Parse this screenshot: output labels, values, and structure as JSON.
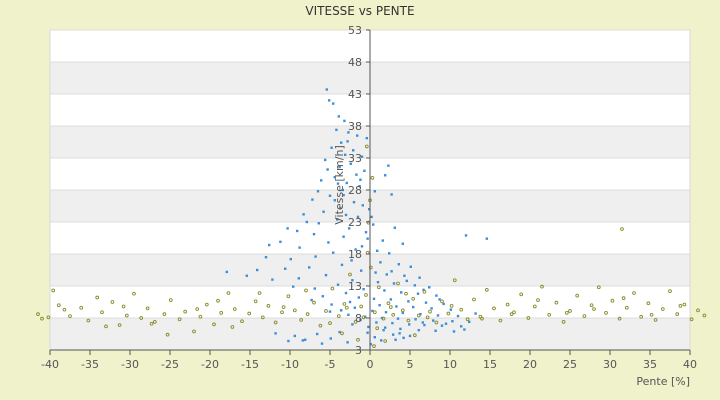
{
  "chart_data": {
    "type": "scatter",
    "title": "VITESSE vs PENTE",
    "xlabel": "Pente [%]",
    "ylabel": "Vitesse [km/h]",
    "xlim": [
      -40,
      40
    ],
    "ylim": [
      3,
      53
    ],
    "x_ticks": [
      -40,
      -35,
      -30,
      -25,
      -20,
      -15,
      -10,
      -5,
      0,
      5,
      10,
      15,
      20,
      25,
      30,
      35,
      40
    ],
    "y_ticks": [
      3,
      8,
      13,
      18,
      23,
      28,
      33,
      38,
      43,
      48,
      53
    ],
    "grid": "horizontal alternating bands",
    "colors": {
      "background": "#f0f2cc",
      "plot_band_light": "#ffffff",
      "plot_band_dark": "#efefef",
      "series_blue": "#3a8fdc",
      "series_olive": "#8a8a2a",
      "axis": "#555555"
    },
    "series": [
      {
        "color": "#3a8fdc",
        "points": [
          [
            -5.4,
            43.7
          ],
          [
            -5.1,
            42.0
          ],
          [
            -4.6,
            41.5
          ],
          [
            -3.9,
            39.5
          ],
          [
            -3.2,
            38.8
          ],
          [
            -4.2,
            37.4
          ],
          [
            -2.7,
            37.0
          ],
          [
            -1.6,
            36.5
          ],
          [
            -0.4,
            36.1
          ],
          [
            -3.6,
            35.4
          ],
          [
            -4.8,
            34.6
          ],
          [
            -2.1,
            34.2
          ],
          [
            -3.1,
            33.5
          ],
          [
            -1.0,
            33.2
          ],
          [
            -5.6,
            32.7
          ],
          [
            -2.4,
            32.1
          ],
          [
            -3.8,
            31.6
          ],
          [
            -0.7,
            31.0
          ],
          [
            -1.7,
            30.4
          ],
          [
            2.3,
            31.8
          ],
          [
            1.9,
            30.3
          ],
          [
            -4.4,
            30.0
          ],
          [
            -6.1,
            29.5
          ],
          [
            -2.9,
            29.1
          ],
          [
            -1.3,
            28.6
          ],
          [
            -3.4,
            28.0
          ],
          [
            0.6,
            27.8
          ],
          [
            2.7,
            27.3
          ],
          [
            -5.0,
            27.1
          ],
          [
            -7.2,
            26.5
          ],
          [
            -2.0,
            26.1
          ],
          [
            -0.9,
            25.6
          ],
          [
            -3.7,
            25.2
          ],
          [
            -5.8,
            24.6
          ],
          [
            -8.3,
            24.2
          ],
          [
            -1.5,
            23.8
          ],
          [
            -4.1,
            23.4
          ],
          [
            -6.4,
            22.8
          ],
          [
            0.4,
            22.6
          ],
          [
            3.1,
            22.1
          ],
          [
            -2.6,
            22.0
          ],
          [
            -9.1,
            21.6
          ],
          [
            -7.0,
            21.1
          ],
          [
            -3.3,
            20.7
          ],
          [
            -0.3,
            20.4
          ],
          [
            1.6,
            20.1
          ],
          [
            4.1,
            19.6
          ],
          [
            -5.2,
            19.8
          ],
          [
            -11.2,
            19.9
          ],
          [
            -12.6,
            19.4
          ],
          [
            -8.8,
            19.0
          ],
          [
            -1.8,
            18.7
          ],
          [
            0.9,
            18.5
          ],
          [
            2.4,
            18.1
          ],
          [
            -4.6,
            18.2
          ],
          [
            -6.8,
            17.6
          ],
          [
            -9.9,
            17.2
          ],
          [
            -2.3,
            17.0
          ],
          [
            1.3,
            16.7
          ],
          [
            3.6,
            16.4
          ],
          [
            5.1,
            16.0
          ],
          [
            -3.5,
            16.3
          ],
          [
            -7.6,
            15.9
          ],
          [
            -10.6,
            15.7
          ],
          [
            -14.1,
            15.5
          ],
          [
            -17.9,
            15.2
          ],
          [
            -1.1,
            15.4
          ],
          [
            0.7,
            15.1
          ],
          [
            2.1,
            14.8
          ],
          [
            4.3,
            14.6
          ],
          [
            6.2,
            14.3
          ],
          [
            -5.5,
            14.7
          ],
          [
            -8.9,
            14.2
          ],
          [
            -12.2,
            14.0
          ],
          [
            -2.2,
            13.9
          ],
          [
            1.0,
            13.6
          ],
          [
            3.0,
            13.4
          ],
          [
            5.6,
            13.1
          ],
          [
            7.4,
            12.8
          ],
          [
            -4.0,
            13.2
          ],
          [
            -6.9,
            12.6
          ],
          [
            -0.8,
            12.5
          ],
          [
            1.8,
            12.3
          ],
          [
            3.9,
            12.0
          ],
          [
            6.0,
            11.8
          ],
          [
            8.3,
            11.5
          ],
          [
            -3.0,
            11.9
          ],
          [
            -5.9,
            11.4
          ],
          [
            -1.4,
            11.2
          ],
          [
            0.5,
            11.0
          ],
          [
            2.6,
            10.9
          ],
          [
            4.8,
            10.6
          ],
          [
            7.0,
            10.4
          ],
          [
            9.2,
            10.2
          ],
          [
            -2.5,
            10.5
          ],
          [
            -4.8,
            10.1
          ],
          [
            1.2,
            10.0
          ],
          [
            3.3,
            9.8
          ],
          [
            5.4,
            9.7
          ],
          [
            7.7,
            9.5
          ],
          [
            10.1,
            9.3
          ],
          [
            -1.9,
            9.6
          ],
          [
            -3.6,
            9.2
          ],
          [
            0.3,
            9.1
          ],
          [
            2.0,
            8.9
          ],
          [
            4.1,
            8.8
          ],
          [
            6.3,
            8.6
          ],
          [
            8.5,
            8.4
          ],
          [
            11.0,
            8.3
          ],
          [
            -2.7,
            8.5
          ],
          [
            -0.6,
            8.2
          ],
          [
            1.5,
            8.0
          ],
          [
            3.5,
            7.9
          ],
          [
            5.7,
            7.8
          ],
          [
            7.9,
            7.6
          ],
          [
            10.3,
            7.5
          ],
          [
            12.4,
            7.4
          ],
          [
            -1.2,
            7.7
          ],
          [
            0.8,
            7.3
          ],
          [
            2.8,
            7.2
          ],
          [
            4.9,
            7.0
          ],
          [
            6.8,
            6.9
          ],
          [
            9.0,
            6.8
          ],
          [
            11.4,
            6.7
          ],
          [
            -0.2,
            6.6
          ],
          [
            1.9,
            6.5
          ],
          [
            3.8,
            6.3
          ],
          [
            6.1,
            6.1
          ],
          [
            8.2,
            6.0
          ],
          [
            10.5,
            5.9
          ],
          [
            -3.8,
            5.8
          ],
          [
            -6.6,
            5.5
          ],
          [
            -9.4,
            5.2
          ],
          [
            -11.8,
            5.6
          ],
          [
            2.9,
            5.4
          ],
          [
            5.0,
            5.2
          ],
          [
            0.6,
            5.0
          ],
          [
            -4.9,
            4.8
          ],
          [
            -8.1,
            4.6
          ],
          [
            -10.2,
            4.4
          ],
          [
            4.2,
            4.9
          ],
          [
            1.4,
            4.5
          ],
          [
            -2.8,
            4.2
          ],
          [
            0.1,
            3.9
          ],
          [
            -6.0,
            4.0
          ],
          [
            -8.4,
            4.5
          ],
          [
            3.2,
            4.6
          ],
          [
            12.0,
            20.9
          ],
          [
            14.6,
            20.4
          ],
          [
            -0.5,
            21.4
          ],
          [
            -5.3,
            31.2
          ],
          [
            -2.8,
            35.6
          ],
          [
            -1.2,
            29.6
          ],
          [
            -0.1,
            25.0
          ],
          [
            0.2,
            23.8
          ],
          [
            -6.5,
            27.8
          ],
          [
            -4.4,
            26.4
          ],
          [
            -3.0,
            24.1
          ],
          [
            -1.0,
            19.2
          ],
          [
            2.7,
            15.3
          ],
          [
            4.6,
            13.8
          ],
          [
            6.7,
            12.4
          ],
          [
            8.7,
            10.9
          ],
          [
            -7.9,
            23.0
          ],
          [
            -10.3,
            22.0
          ],
          [
            -13.0,
            17.5
          ],
          [
            -15.4,
            14.6
          ],
          [
            -9.6,
            12.9
          ],
          [
            -7.3,
            10.8
          ],
          [
            -5.0,
            9.0
          ],
          [
            -2.2,
            7.0
          ],
          [
            -0.3,
            5.7
          ],
          [
            1.7,
            6.1
          ],
          [
            3.7,
            5.6
          ],
          [
            6.6,
            7.3
          ],
          [
            9.5,
            7.1
          ],
          [
            11.8,
            6.2
          ],
          [
            13.2,
            8.7
          ],
          [
            -3.3,
            27.2
          ],
          [
            -4.0,
            29.0
          ]
        ]
      },
      {
        "color": "#8a8a2a",
        "points": [
          [
            -41.5,
            8.6
          ],
          [
            -41.0,
            7.9
          ],
          [
            -40.2,
            8.1
          ],
          [
            -39.6,
            12.3
          ],
          [
            -38.9,
            10.0
          ],
          [
            -37.5,
            8.3
          ],
          [
            -36.1,
            9.6
          ],
          [
            -35.2,
            7.6
          ],
          [
            -34.1,
            11.2
          ],
          [
            -33.5,
            8.9
          ],
          [
            -32.2,
            10.5
          ],
          [
            -31.3,
            6.9
          ],
          [
            -30.4,
            8.4
          ],
          [
            -29.5,
            11.8
          ],
          [
            -28.6,
            8.0
          ],
          [
            -27.8,
            9.5
          ],
          [
            -26.9,
            7.4
          ],
          [
            -25.7,
            8.6
          ],
          [
            -24.9,
            10.8
          ],
          [
            -23.8,
            7.8
          ],
          [
            -23.1,
            9.0
          ],
          [
            -22.0,
            5.9
          ],
          [
            -21.2,
            8.2
          ],
          [
            -20.4,
            10.1
          ],
          [
            -19.5,
            7.0
          ],
          [
            -18.6,
            8.8
          ],
          [
            -17.7,
            11.9
          ],
          [
            -16.9,
            9.4
          ],
          [
            -16.0,
            7.5
          ],
          [
            -15.1,
            8.7
          ],
          [
            -14.3,
            10.6
          ],
          [
            -13.4,
            8.1
          ],
          [
            -12.7,
            9.9
          ],
          [
            -11.8,
            7.3
          ],
          [
            -11.0,
            8.9
          ],
          [
            -10.2,
            11.4
          ],
          [
            -9.4,
            9.2
          ],
          [
            -8.6,
            7.7
          ],
          [
            -7.8,
            8.6
          ],
          [
            -7.0,
            10.4
          ],
          [
            -6.2,
            6.8
          ],
          [
            -5.5,
            9.1
          ],
          [
            -4.7,
            12.6
          ],
          [
            -3.9,
            8.3
          ],
          [
            -3.2,
            10.2
          ],
          [
            -2.5,
            14.8
          ],
          [
            -1.8,
            7.4
          ],
          [
            -1.1,
            9.8
          ],
          [
            -0.5,
            11.6
          ],
          [
            0.1,
            15.9
          ],
          [
            0.6,
            8.9
          ],
          [
            1.1,
            12.8
          ],
          [
            1.7,
            7.9
          ],
          [
            2.3,
            10.3
          ],
          [
            2.9,
            8.5
          ],
          [
            3.5,
            13.4
          ],
          [
            4.1,
            9.2
          ],
          [
            4.8,
            7.6
          ],
          [
            5.4,
            11.0
          ],
          [
            6.1,
            8.4
          ],
          [
            6.8,
            12.1
          ],
          [
            7.5,
            9.0
          ],
          [
            8.3,
            7.3
          ],
          [
            9.0,
            10.6
          ],
          [
            9.8,
            8.7
          ],
          [
            10.6,
            13.9
          ],
          [
            11.4,
            9.3
          ],
          [
            12.2,
            7.8
          ],
          [
            13.0,
            10.9
          ],
          [
            13.8,
            8.2
          ],
          [
            14.6,
            12.4
          ],
          [
            15.5,
            9.5
          ],
          [
            16.3,
            7.6
          ],
          [
            17.2,
            10.1
          ],
          [
            18.0,
            8.9
          ],
          [
            18.9,
            11.7
          ],
          [
            19.8,
            8.0
          ],
          [
            20.6,
            9.8
          ],
          [
            21.5,
            12.9
          ],
          [
            22.4,
            8.5
          ],
          [
            23.3,
            10.4
          ],
          [
            24.2,
            7.4
          ],
          [
            25.0,
            9.1
          ],
          [
            25.9,
            11.5
          ],
          [
            26.8,
            8.3
          ],
          [
            27.7,
            10.0
          ],
          [
            28.6,
            12.8
          ],
          [
            29.5,
            8.8
          ],
          [
            30.3,
            10.7
          ],
          [
            31.2,
            7.9
          ],
          [
            32.1,
            9.6
          ],
          [
            33.0,
            11.9
          ],
          [
            33.9,
            8.2
          ],
          [
            34.8,
            10.3
          ],
          [
            35.7,
            7.7
          ],
          [
            36.6,
            9.4
          ],
          [
            37.5,
            12.2
          ],
          [
            38.4,
            8.6
          ],
          [
            39.3,
            10.1
          ],
          [
            40.2,
            7.8
          ],
          [
            41.0,
            9.2
          ],
          [
            41.8,
            8.4
          ],
          [
            -38.2,
            9.3
          ],
          [
            -30.8,
            9.8
          ],
          [
            -27.3,
            7.1
          ],
          [
            -21.6,
            9.4
          ],
          [
            -17.2,
            6.6
          ],
          [
            -13.8,
            11.9
          ],
          [
            -10.8,
            9.7
          ],
          [
            -8.0,
            12.3
          ],
          [
            -5.0,
            7.2
          ],
          [
            -2.9,
            9.6
          ],
          [
            -0.8,
            8.1
          ],
          [
            0.9,
            6.4
          ],
          [
            2.6,
            9.7
          ],
          [
            4.5,
            11.8
          ],
          [
            7.2,
            8.1
          ],
          [
            10.2,
            9.9
          ],
          [
            14.0,
            7.9
          ],
          [
            17.7,
            8.6
          ],
          [
            21.0,
            10.8
          ],
          [
            24.6,
            8.8
          ],
          [
            28.0,
            9.4
          ],
          [
            31.7,
            11.1
          ],
          [
            35.2,
            8.5
          ],
          [
            38.8,
            9.9
          ],
          [
            -0.3,
            18.2
          ],
          [
            -0.2,
            22.9
          ],
          [
            0.0,
            26.4
          ],
          [
            -0.4,
            34.8
          ],
          [
            0.3,
            29.9
          ],
          [
            -1.5,
            4.6
          ],
          [
            0.5,
            3.6
          ],
          [
            1.9,
            4.4
          ],
          [
            -3.5,
            5.6
          ],
          [
            5.6,
            5.3
          ],
          [
            31.5,
            21.9
          ],
          [
            -33.0,
            6.7
          ],
          [
            -25.3,
            5.4
          ],
          [
            -19.0,
            10.7
          ]
        ]
      }
    ]
  }
}
